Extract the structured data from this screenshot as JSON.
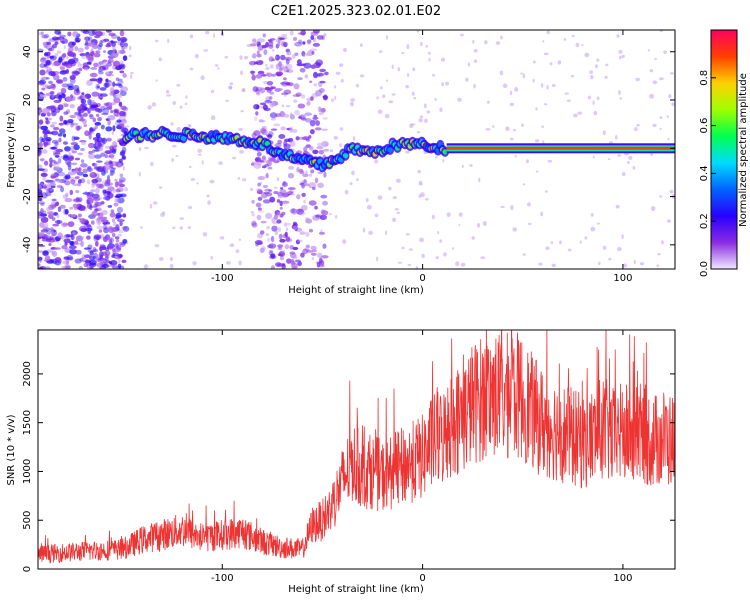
{
  "chart_data": [
    {
      "type": "heatmap",
      "title": "C2E1.2025.323.02.01.E02",
      "xlabel": "Height of straight line (km)",
      "ylabel": "Frequency (Hz)",
      "xlim": [
        -192,
        126
      ],
      "ylim": [
        -50,
        49
      ],
      "xticks": [
        "-100",
        "0",
        "100"
      ],
      "yticks": [
        "40",
        "20",
        "0",
        "-20",
        "-40"
      ],
      "colorbar": {
        "label": "Normalized spectral amplitude",
        "range": [
          0,
          1
        ],
        "ticks": [
          "0.0",
          "0.2",
          "0.4",
          "0.6",
          "0.8"
        ],
        "colors": [
          "#f0e8ff",
          "#8a2be2",
          "#2800ff",
          "#0064ff",
          "#00dcff",
          "#00ff50",
          "#a0ff00",
          "#ffd000",
          "#ff4000",
          "#ff0060"
        ]
      },
      "features": [
        {
          "name": "noise band left",
          "x_range": [
            -192,
            -148
          ],
          "y_range": [
            -50,
            49
          ],
          "amplitude": 0.2
        },
        {
          "name": "noise column",
          "x_range": [
            -85,
            -48
          ],
          "y_range": [
            -50,
            49
          ],
          "amplitude": 0.15
        },
        {
          "name": "signal track",
          "points": [
            [
              -148,
              5
            ],
            [
              -130,
              6
            ],
            [
              -110,
              5
            ],
            [
              -95,
              4
            ],
            [
              -80,
              2
            ],
            [
              -70,
              -3
            ],
            [
              -60,
              -5
            ],
            [
              -50,
              -7
            ],
            [
              -42,
              -4
            ],
            [
              -35,
              0
            ],
            [
              -25,
              -2
            ],
            [
              -15,
              1
            ],
            [
              -5,
              2
            ],
            [
              10,
              0
            ],
            [
              126,
              0
            ]
          ],
          "amplitude": 0.55
        },
        {
          "name": "steady carrier",
          "x_range": [
            12,
            126
          ],
          "y": 0,
          "amplitude": 0.9
        }
      ]
    },
    {
      "type": "line",
      "xlabel": "Height of straight line (km)",
      "ylabel": "SNR (10 * v/v)",
      "xlim": [
        -192,
        126
      ],
      "ylim": [
        0,
        2450
      ],
      "xticks": [
        "-100",
        "0",
        "100"
      ],
      "yticks": [
        "0",
        "500",
        "1000",
        "1500",
        "2000"
      ],
      "color": "#ee3333",
      "x": [
        -192,
        -170,
        -150,
        -140,
        -130,
        -120,
        -110,
        -100,
        -90,
        -80,
        -70,
        -60,
        -55,
        -50,
        -45,
        -40,
        -35,
        -30,
        -25,
        -20,
        -15,
        -10,
        -5,
        0,
        5,
        10,
        15,
        20,
        25,
        30,
        35,
        40,
        45,
        50,
        55,
        60,
        65,
        70,
        75,
        80,
        85,
        90,
        95,
        100,
        105,
        110,
        115,
        120,
        126
      ],
      "values": [
        150,
        180,
        200,
        300,
        350,
        400,
        320,
        350,
        380,
        280,
        220,
        200,
        450,
        500,
        650,
        900,
        1100,
        1000,
        1000,
        950,
        1000,
        1050,
        1100,
        1150,
        1300,
        1350,
        1500,
        1550,
        1700,
        1750,
        1800,
        1750,
        1800,
        1750,
        1600,
        1500,
        1450,
        1400,
        1350,
        1300,
        1350,
        1450,
        1350,
        1400,
        1350,
        1400,
        1300,
        1350,
        1300
      ]
    }
  ]
}
